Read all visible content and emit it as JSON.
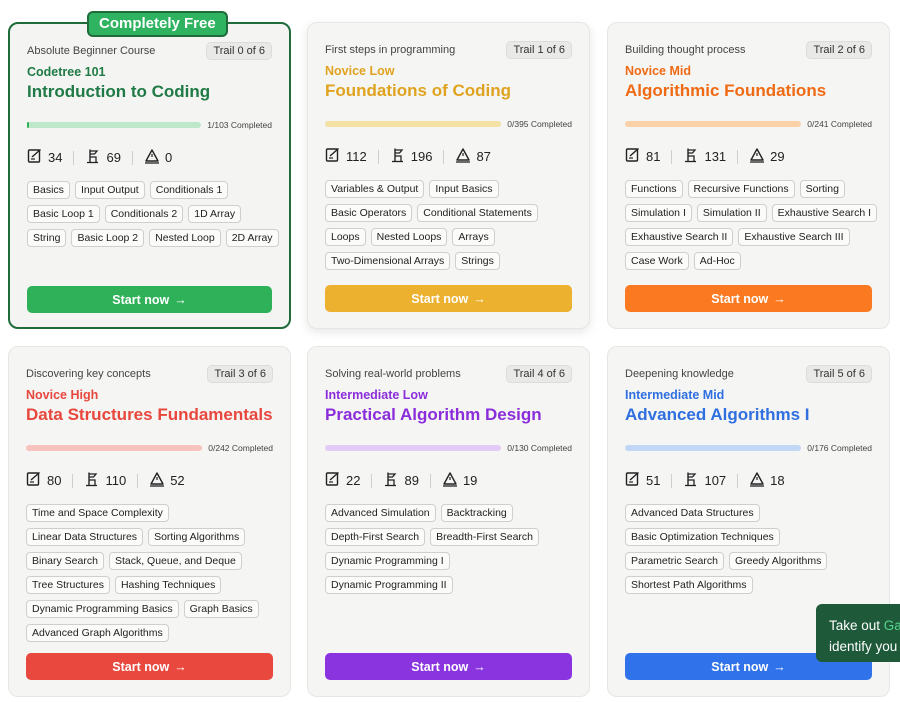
{
  "toast": {
    "line1_prefix": "Take out ",
    "line1_highlight": "Ga",
    "line2": "identify you"
  },
  "cards": [
    {
      "badge": "Completely Free",
      "subtitle": "Absolute Beginner Course",
      "trail": "Trail 0 of 6",
      "level": "Codetree 101",
      "title": "Introduction to Coding",
      "progress_text": "1/103 Completed",
      "progress_fraction": 0.0097,
      "stats": {
        "problems": "34",
        "concepts": "69",
        "tests": "0"
      },
      "tags": [
        "Basics",
        "Input Output",
        "Conditionals 1",
        "Basic Loop 1",
        "Conditionals 2",
        "1D Array",
        "String",
        "Basic Loop 2",
        "Nested Loop",
        "2D Array"
      ],
      "start_label": "Start now",
      "colors": {
        "level": "#1f7a45",
        "title": "#1f7a45",
        "bar": "#bde8c9",
        "button": "#2fb15a"
      }
    },
    {
      "subtitle": "First steps in programming",
      "trail": "Trail 1 of 6",
      "level": "Novice Low",
      "title": "Foundations of Coding",
      "progress_text": "0/395 Completed",
      "progress_fraction": 0,
      "stats": {
        "problems": "112",
        "concepts": "196",
        "tests": "87"
      },
      "tags": [
        "Variables & Output",
        "Input Basics",
        "Basic Operators",
        "Conditional Statements",
        "Loops",
        "Nested Loops",
        "Arrays",
        "Two-Dimensional Arrays",
        "Strings"
      ],
      "start_label": "Start now",
      "colors": {
        "level": "#e0a31f",
        "title": "#e0a31f",
        "bar": "#f4e1a4",
        "button": "#ecb12f"
      }
    },
    {
      "subtitle": "Building thought process",
      "trail": "Trail 2 of 6",
      "level": "Novice Mid",
      "title": "Algorithmic Foundations",
      "progress_text": "0/241 Completed",
      "progress_fraction": 0,
      "stats": {
        "problems": "81",
        "concepts": "131",
        "tests": "29"
      },
      "tags": [
        "Functions",
        "Recursive Functions",
        "Sorting",
        "Simulation I",
        "Simulation II",
        "Exhaustive Search I",
        "Exhaustive Search II",
        "Exhaustive Search III",
        "Case Work",
        "Ad-Hoc"
      ],
      "start_label": "Start now",
      "colors": {
        "level": "#f06a14",
        "title": "#f06a14",
        "bar": "#fbd2a8",
        "button": "#fb7a21"
      }
    },
    {
      "subtitle": "Discovering key concepts",
      "trail": "Trail 3 of 6",
      "level": "Novice High",
      "title": "Data Structures Fundamentals",
      "progress_text": "0/242 Completed",
      "progress_fraction": 0,
      "stats": {
        "problems": "80",
        "concepts": "110",
        "tests": "52"
      },
      "tags": [
        "Time and Space Complexity",
        "Linear Data Structures",
        "Sorting Algorithms",
        "Binary Search",
        "Stack, Queue, and Deque",
        "Tree Structures",
        "Hashing Techniques",
        "Dynamic Programming Basics",
        "Graph Basics",
        "Advanced Graph Algorithms"
      ],
      "start_label": "Start now",
      "colors": {
        "level": "#e8473d",
        "title": "#e8473d",
        "bar": "#f8c3bf",
        "button": "#e8483e"
      }
    },
    {
      "subtitle": "Solving real-world problems",
      "trail": "Trail 4 of 6",
      "level": "Intermediate Low",
      "title": "Practical Algorithm Design",
      "progress_text": "0/130 Completed",
      "progress_fraction": 0,
      "stats": {
        "problems": "22",
        "concepts": "89",
        "tests": "19"
      },
      "tags": [
        "Advanced Simulation",
        "Backtracking",
        "Depth-First Search",
        "Breadth-First Search",
        "Dynamic Programming I",
        "Dynamic Programming II"
      ],
      "start_label": "Start now",
      "colors": {
        "level": "#8b2ddb",
        "title": "#8b2ddb",
        "bar": "#e2ccf6",
        "button": "#8a34e0"
      }
    },
    {
      "subtitle": "Deepening knowledge",
      "trail": "Trail 5 of 6",
      "level": "Intermediate Mid",
      "title": "Advanced Algorithms I",
      "progress_text": "0/176 Completed",
      "progress_fraction": 0,
      "stats": {
        "problems": "51",
        "concepts": "107",
        "tests": "18"
      },
      "tags": [
        "Advanced Data Structures",
        "Basic Optimization Techniques",
        "Parametric Search",
        "Greedy Algorithms",
        "Shortest Path Algorithms"
      ],
      "start_label": "Start now",
      "colors": {
        "level": "#2f6fe0",
        "title": "#2f6fe0",
        "bar": "#c2d6f6",
        "button": "#2f72ea"
      }
    }
  ]
}
